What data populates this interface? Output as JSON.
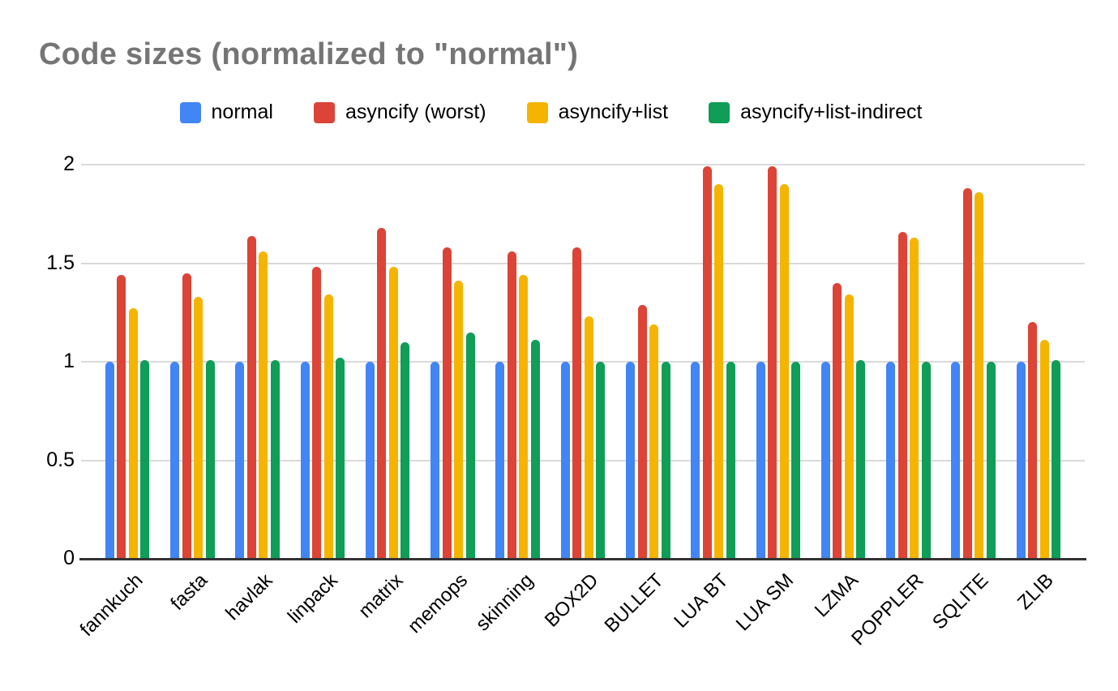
{
  "title": "Code sizes (normalized to \"normal\")",
  "chart_data": {
    "type": "bar",
    "title": "Code sizes (normalized to \"normal\")",
    "xlabel": "",
    "ylabel": "",
    "grid": true,
    "legend_position": "top",
    "bar_style": "rounded-top",
    "ylim": [
      0,
      2
    ],
    "yticks": [
      0,
      0.5,
      1,
      1.5,
      2
    ],
    "categories": [
      "fannkuch",
      "fasta",
      "havlak",
      "linpack",
      "matrix",
      "memops",
      "skinning",
      "BOX2D",
      "BULLET",
      "LUA BT",
      "LUA SM",
      "LZMA",
      "POPPLER",
      "SQLITE",
      "ZLIB"
    ],
    "series": [
      {
        "name": "normal",
        "color": "#4285F4",
        "values": [
          1.0,
          1.0,
          1.0,
          1.0,
          1.0,
          1.0,
          1.0,
          1.0,
          1.0,
          1.0,
          1.0,
          1.0,
          1.0,
          1.0,
          1.0
        ]
      },
      {
        "name": "asyncify (worst)",
        "color": "#DB4437",
        "values": [
          1.44,
          1.45,
          1.64,
          1.48,
          1.68,
          1.58,
          1.56,
          1.58,
          1.29,
          1.99,
          1.99,
          1.4,
          1.66,
          1.88,
          1.2
        ]
      },
      {
        "name": "asyncify+list",
        "color": "#F4B400",
        "values": [
          1.27,
          1.33,
          1.56,
          1.34,
          1.48,
          1.41,
          1.44,
          1.23,
          1.19,
          1.9,
          1.9,
          1.34,
          1.63,
          1.86,
          1.11
        ]
      },
      {
        "name": "asyncify+list-indirect",
        "color": "#0F9D58",
        "values": [
          1.01,
          1.01,
          1.01,
          1.02,
          1.1,
          1.15,
          1.11,
          1.0,
          1.0,
          1.0,
          1.0,
          1.01,
          1.0,
          1.0,
          1.01
        ]
      }
    ]
  },
  "colors": {
    "background": "#FFFFFF",
    "title_text": "#757575",
    "label_text": "#000000",
    "gridline": "#DADADA",
    "axis_line": "#333333"
  }
}
